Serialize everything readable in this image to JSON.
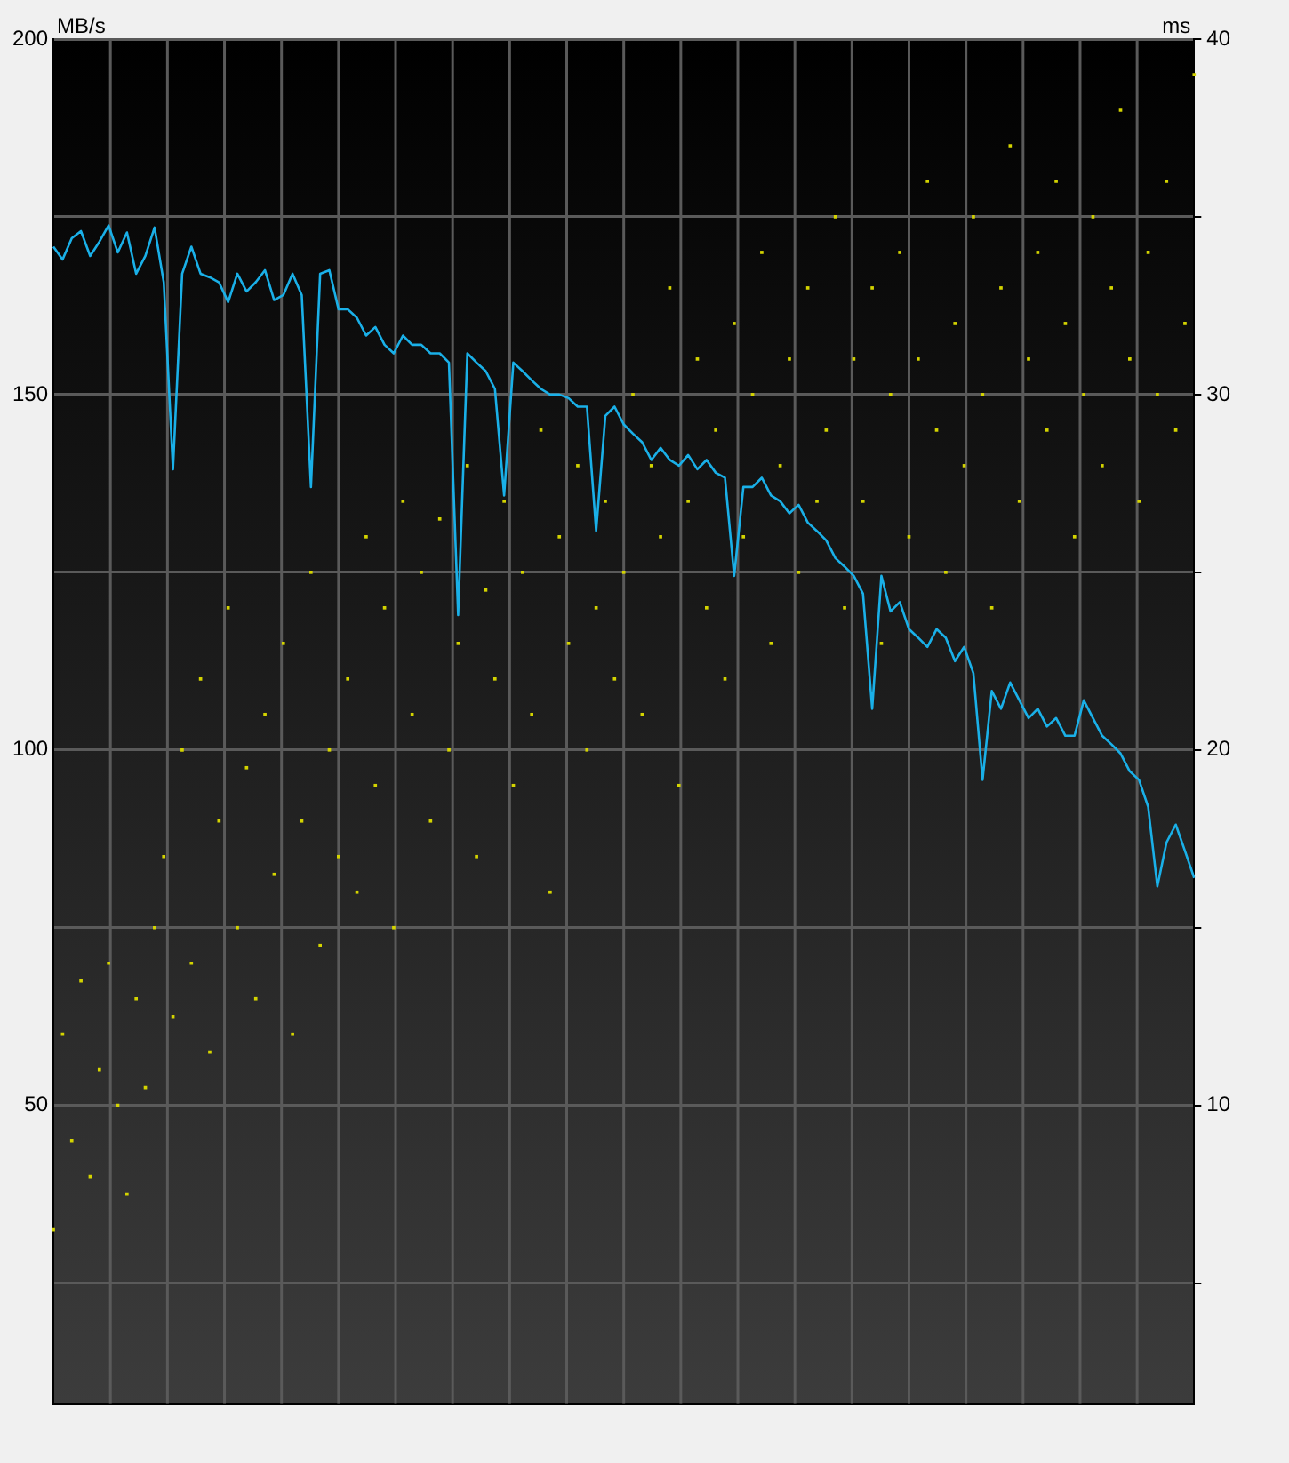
{
  "chart_data": {
    "type": "line",
    "ylabel": "MB/s",
    "y2label": "ms",
    "categories": [
      null,
      null,
      null,
      null,
      null,
      null,
      null,
      null,
      null,
      null,
      null,
      null,
      null,
      null,
      null,
      null,
      null,
      null,
      null,
      null,
      null,
      null,
      null,
      null,
      null,
      null,
      null,
      null,
      null,
      null,
      null,
      null,
      null,
      null,
      null,
      null,
      null,
      null,
      null,
      null,
      null,
      null,
      null,
      null,
      null,
      null,
      null,
      null,
      null,
      null,
      null,
      null,
      null,
      null,
      null,
      null,
      null,
      null,
      null,
      null,
      null,
      null,
      null,
      null,
      null,
      null,
      null,
      null,
      null,
      null,
      null,
      null,
      null,
      null,
      null,
      null,
      null,
      null,
      null,
      null,
      null,
      null,
      null,
      null,
      null,
      null,
      null,
      null,
      null,
      null,
      null,
      null,
      null,
      null,
      null,
      null,
      null,
      null,
      null,
      null,
      null,
      null,
      null,
      null,
      null,
      null,
      null,
      null,
      null,
      null,
      null,
      null,
      null,
      null,
      null,
      null,
      null,
      null,
      null,
      null,
      null,
      null,
      null,
      null,
      null
    ],
    "series": [
      {
        "color": "#1ab0e8",
        "marker": "none",
        "values": [
          170.8,
          169,
          172,
          173,
          169.5,
          171.5,
          173.8,
          170,
          172.8,
          167,
          169.5,
          173.5,
          165.8,
          139.5,
          167,
          170.8,
          167,
          166.5,
          165.8,
          163,
          167,
          164.5,
          165.8,
          167.5,
          163.3,
          164,
          167,
          164,
          137,
          167,
          167.5,
          162,
          162,
          160.8,
          158.3,
          159.5,
          157,
          155.8,
          158.3,
          157,
          157,
          155.8,
          155.8,
          154.5,
          119,
          155.8,
          154.5,
          153.3,
          150.8,
          135.8,
          154.5,
          153.3,
          152,
          150.8,
          150,
          150,
          149.5,
          148.3,
          148.3,
          130.8,
          147,
          148.3,
          145.8,
          144.5,
          143.3,
          140.8,
          142.5,
          140.8,
          140,
          141.5,
          139.5,
          140.8,
          139,
          138.3,
          124.5,
          137,
          137,
          138.3,
          135.8,
          135,
          133.3,
          134.5,
          132,
          130.8,
          129.5,
          127,
          125.8,
          124.5,
          122,
          105.8,
          124.5,
          119.5,
          120.8,
          117,
          115.8,
          114.5,
          117,
          115.8,
          112.5,
          114.5,
          110.8,
          95.8,
          108.3,
          105.8,
          109.5,
          107,
          104.5,
          105.8,
          103.3,
          104.5,
          102,
          102,
          107,
          104.5,
          102,
          100.8,
          99.5,
          97,
          95.8,
          92,
          80.8,
          87,
          89.5,
          85.8,
          82
        ]
      },
      {
        "type": "scatter",
        "color": "#d4d400",
        "marker": "square",
        "axis": "y2",
        "values": [
          6.5,
          12,
          9,
          13.5,
          8,
          11,
          14,
          10,
          7.5,
          13,
          10.5,
          15,
          17,
          12.5,
          20,
          14,
          22,
          11.5,
          18,
          24,
          15,
          19.5,
          13,
          21,
          16.5,
          23,
          12,
          18,
          25,
          14.5,
          20,
          17,
          22,
          16,
          26,
          19,
          24,
          15,
          27,
          21,
          25,
          18,
          26.5,
          20,
          23,
          28,
          17,
          24.5,
          22,
          27,
          19,
          25,
          21,
          29,
          16,
          26,
          23,
          28,
          20,
          24,
          27,
          22,
          25,
          30,
          21,
          28,
          26,
          33,
          19,
          27,
          31,
          24,
          29,
          22,
          32,
          26,
          30,
          34,
          23,
          28,
          31,
          25,
          33,
          27,
          29,
          35,
          24,
          31,
          27,
          33,
          23,
          30,
          34,
          26,
          31,
          36,
          29,
          25,
          32,
          28,
          35,
          30,
          24,
          33,
          37,
          27,
          31,
          34,
          29,
          36,
          32,
          26,
          30,
          35,
          28,
          33,
          38,
          31,
          27,
          34,
          30,
          36,
          29,
          32,
          39
        ]
      }
    ],
    "ylim": [
      8,
      200
    ],
    "yticks": [
      {
        "value": 25,
        "label": null
      },
      50,
      {
        "value": 75,
        "label": null
      },
      100,
      {
        "value": 125,
        "label": null
      },
      150,
      {
        "value": 175,
        "label": null
      },
      200
    ],
    "y2lim": [
      1.6,
      40
    ],
    "y2ticks": [
      {
        "value": 5,
        "label": null
      },
      10,
      {
        "value": 15,
        "label": null
      },
      20,
      {
        "value": 25,
        "label": null
      },
      30,
      {
        "value": 35,
        "label": null
      },
      40
    ],
    "grid": true,
    "legend": false
  }
}
